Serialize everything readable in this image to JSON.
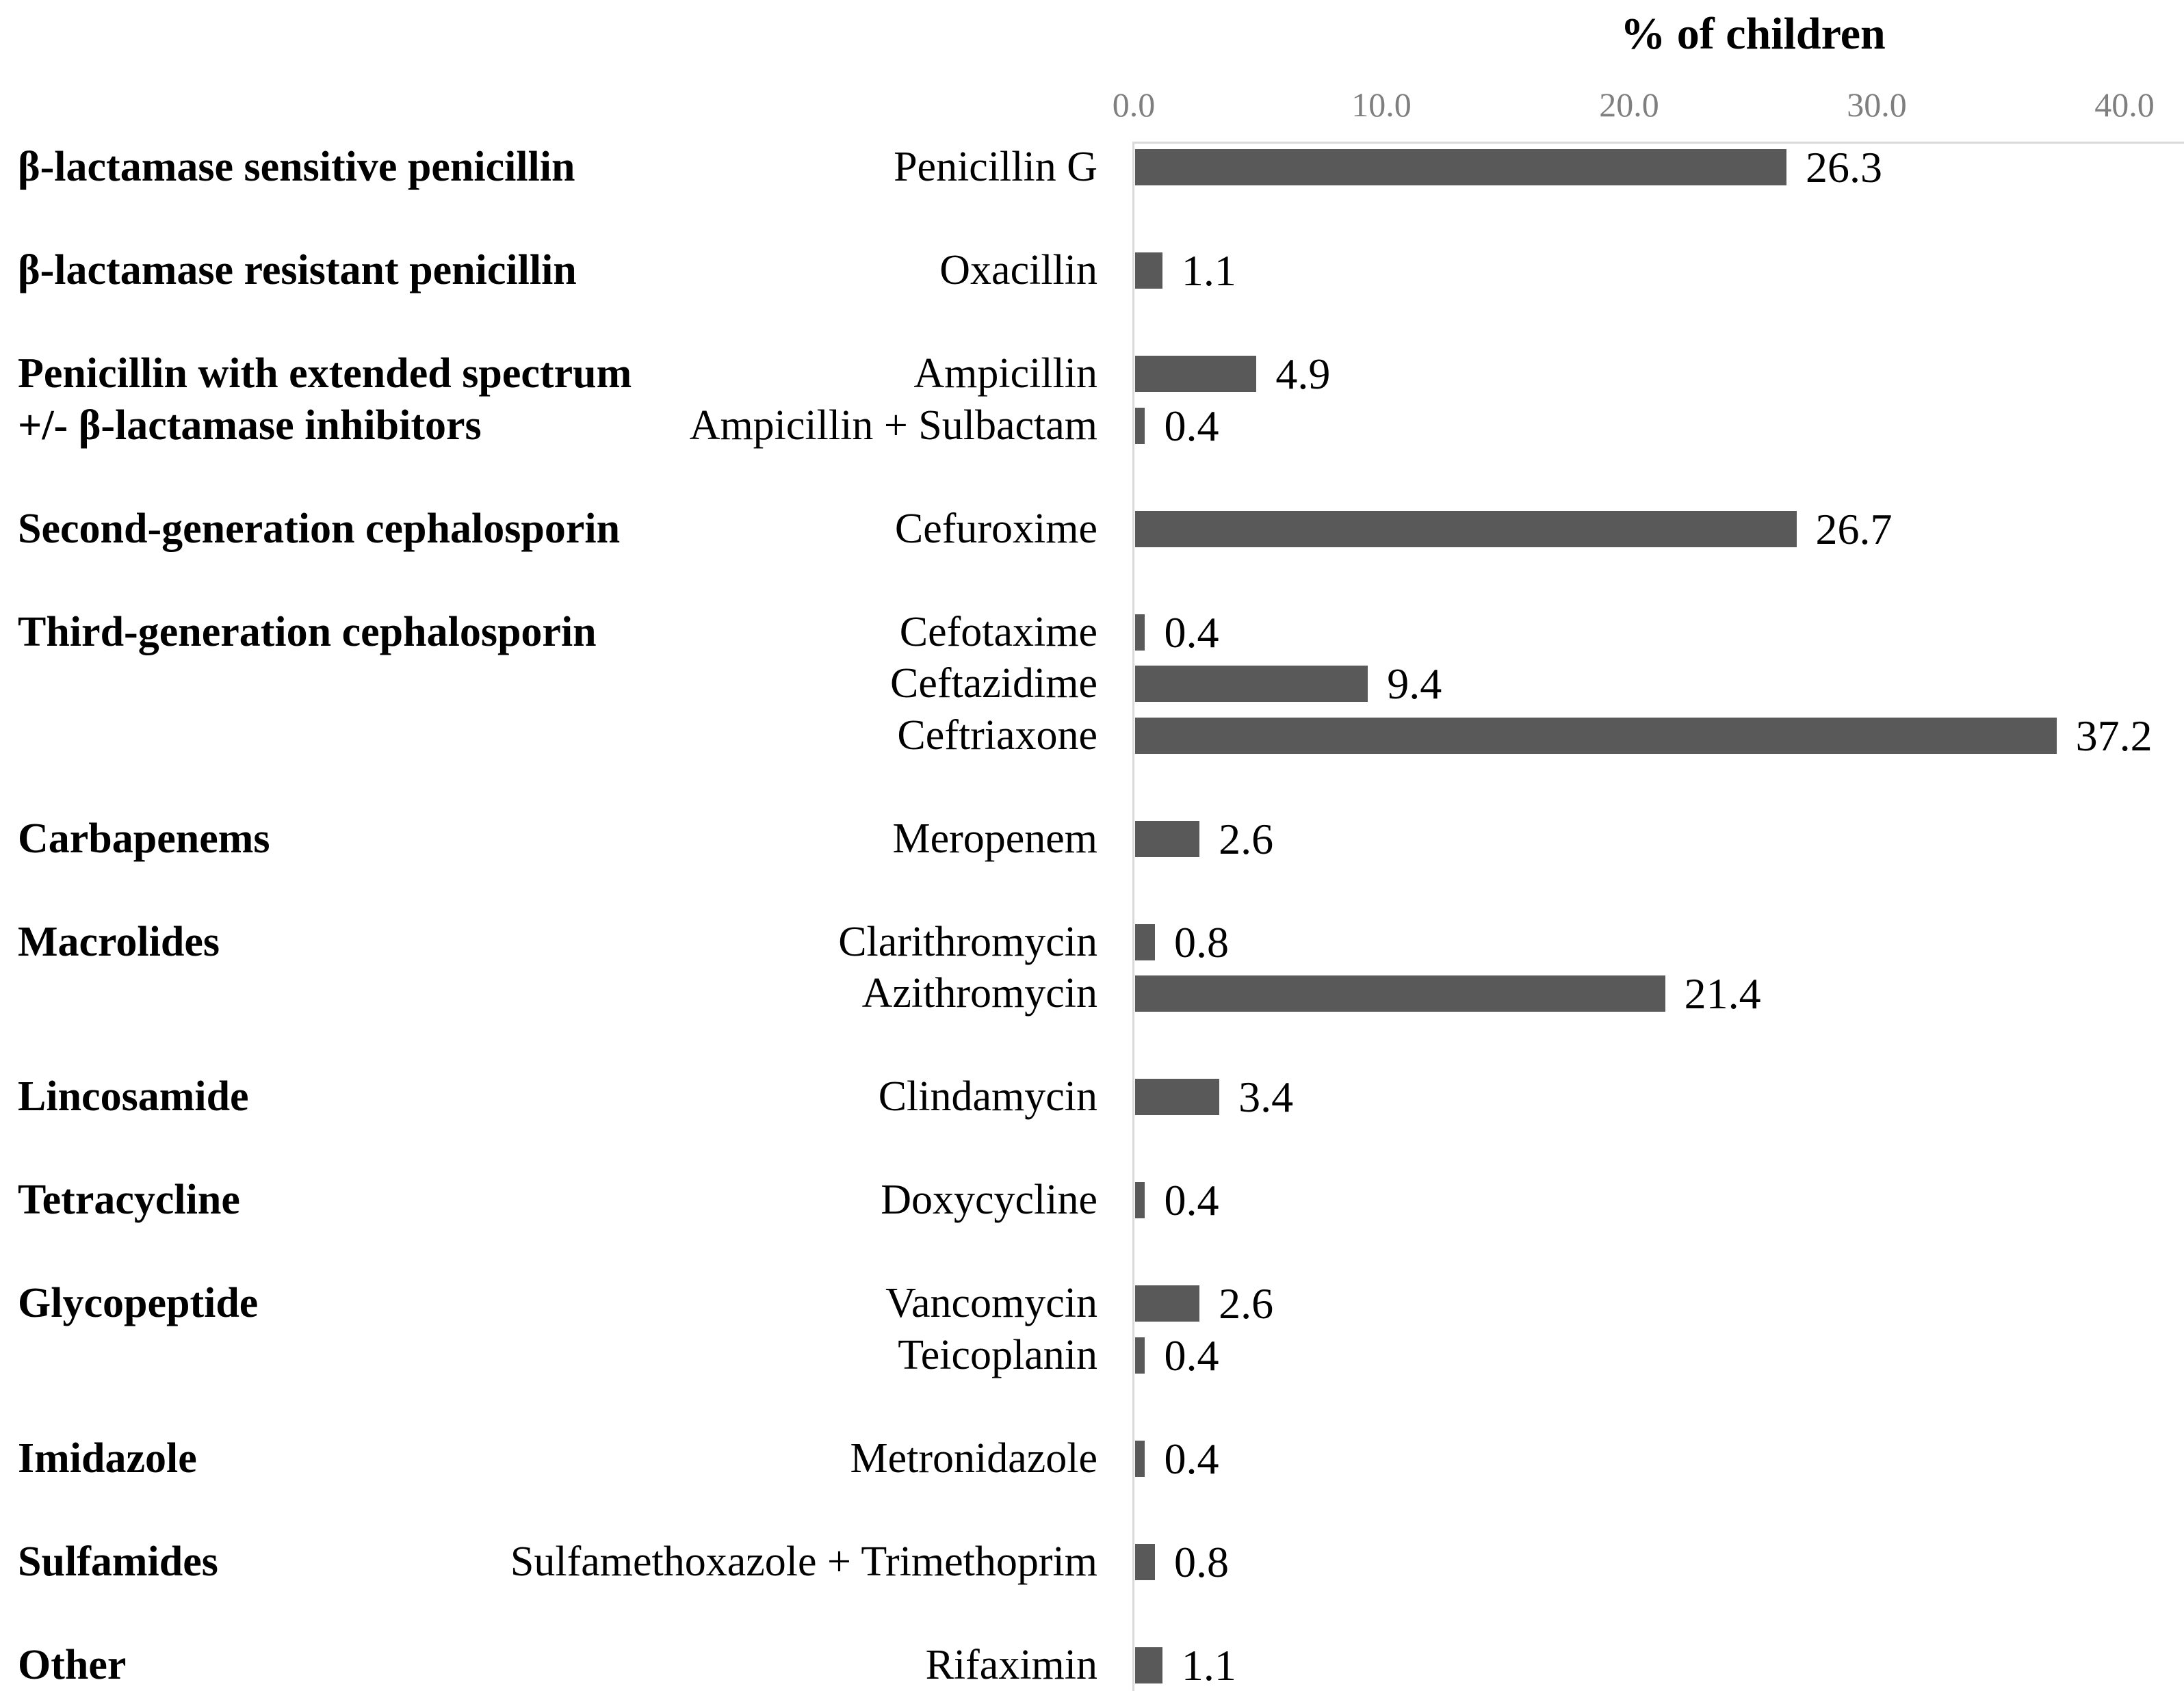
{
  "chart_data": {
    "type": "bar",
    "orientation": "horizontal",
    "title": "% of children",
    "xlabel": "% of children",
    "ylabel": "",
    "xlim": [
      0.0,
      40.0
    ],
    "grid": false,
    "legend": "none",
    "axis": {
      "position": "top",
      "ticks": [
        {
          "value": 0,
          "label": "0.0"
        },
        {
          "value": 10,
          "label": "10.0"
        },
        {
          "value": 20,
          "label": "20.0"
        },
        {
          "value": 30,
          "label": "30.0"
        },
        {
          "value": 40,
          "label": "40.0"
        }
      ]
    },
    "colors": {
      "bar": "#595959",
      "axis_line": "#d9d9d9",
      "tick_text": "#7f7f7f",
      "label_text": "#000000"
    },
    "groups": [
      {
        "label": "β-lactamase sensitive penicillin",
        "items": [
          {
            "drug": "Penicillin G",
            "value": 26.3
          }
        ]
      },
      {
        "label": "β-lactamase resistant penicillin",
        "items": [
          {
            "drug": "Oxacillin",
            "value": 1.1
          }
        ]
      },
      {
        "label": "Penicillin with extended spectrum\n+/- β-lactamase inhibitors",
        "items": [
          {
            "drug": "Ampicillin",
            "value": 4.9
          },
          {
            "drug": "Ampicillin + Sulbactam",
            "value": 0.4
          }
        ]
      },
      {
        "label": "Second-generation cephalosporin",
        "items": [
          {
            "drug": "Cefuroxime",
            "value": 26.7
          }
        ]
      },
      {
        "label": "Third-generation cephalosporin",
        "items": [
          {
            "drug": "Cefotaxime",
            "value": 0.4
          },
          {
            "drug": "Ceftazidime",
            "value": 9.4
          },
          {
            "drug": "Ceftriaxone",
            "value": 37.2
          }
        ]
      },
      {
        "label": "Carbapenems",
        "items": [
          {
            "drug": "Meropenem",
            "value": 2.6
          }
        ]
      },
      {
        "label": "Macrolides",
        "items": [
          {
            "drug": "Clarithromycin",
            "value": 0.8
          },
          {
            "drug": "Azithromycin",
            "value": 21.4
          }
        ]
      },
      {
        "label": "Lincosamide",
        "items": [
          {
            "drug": "Clindamycin",
            "value": 3.4
          }
        ]
      },
      {
        "label": "Tetracycline",
        "items": [
          {
            "drug": "Doxycycline",
            "value": 0.4
          }
        ]
      },
      {
        "label": "Glycopeptide",
        "items": [
          {
            "drug": "Vancomycin",
            "value": 2.6
          },
          {
            "drug": "Teicoplanin",
            "value": 0.4
          }
        ]
      },
      {
        "label": "Imidazole",
        "items": [
          {
            "drug": "Metronidazole",
            "value": 0.4
          }
        ]
      },
      {
        "label": "Sulfamides",
        "items": [
          {
            "drug": "Sulfamethoxazole + Trimethoprim",
            "value": 0.8
          }
        ]
      },
      {
        "label": "Other",
        "items": [
          {
            "drug": "Rifaximin",
            "value": 1.1
          }
        ]
      }
    ]
  }
}
